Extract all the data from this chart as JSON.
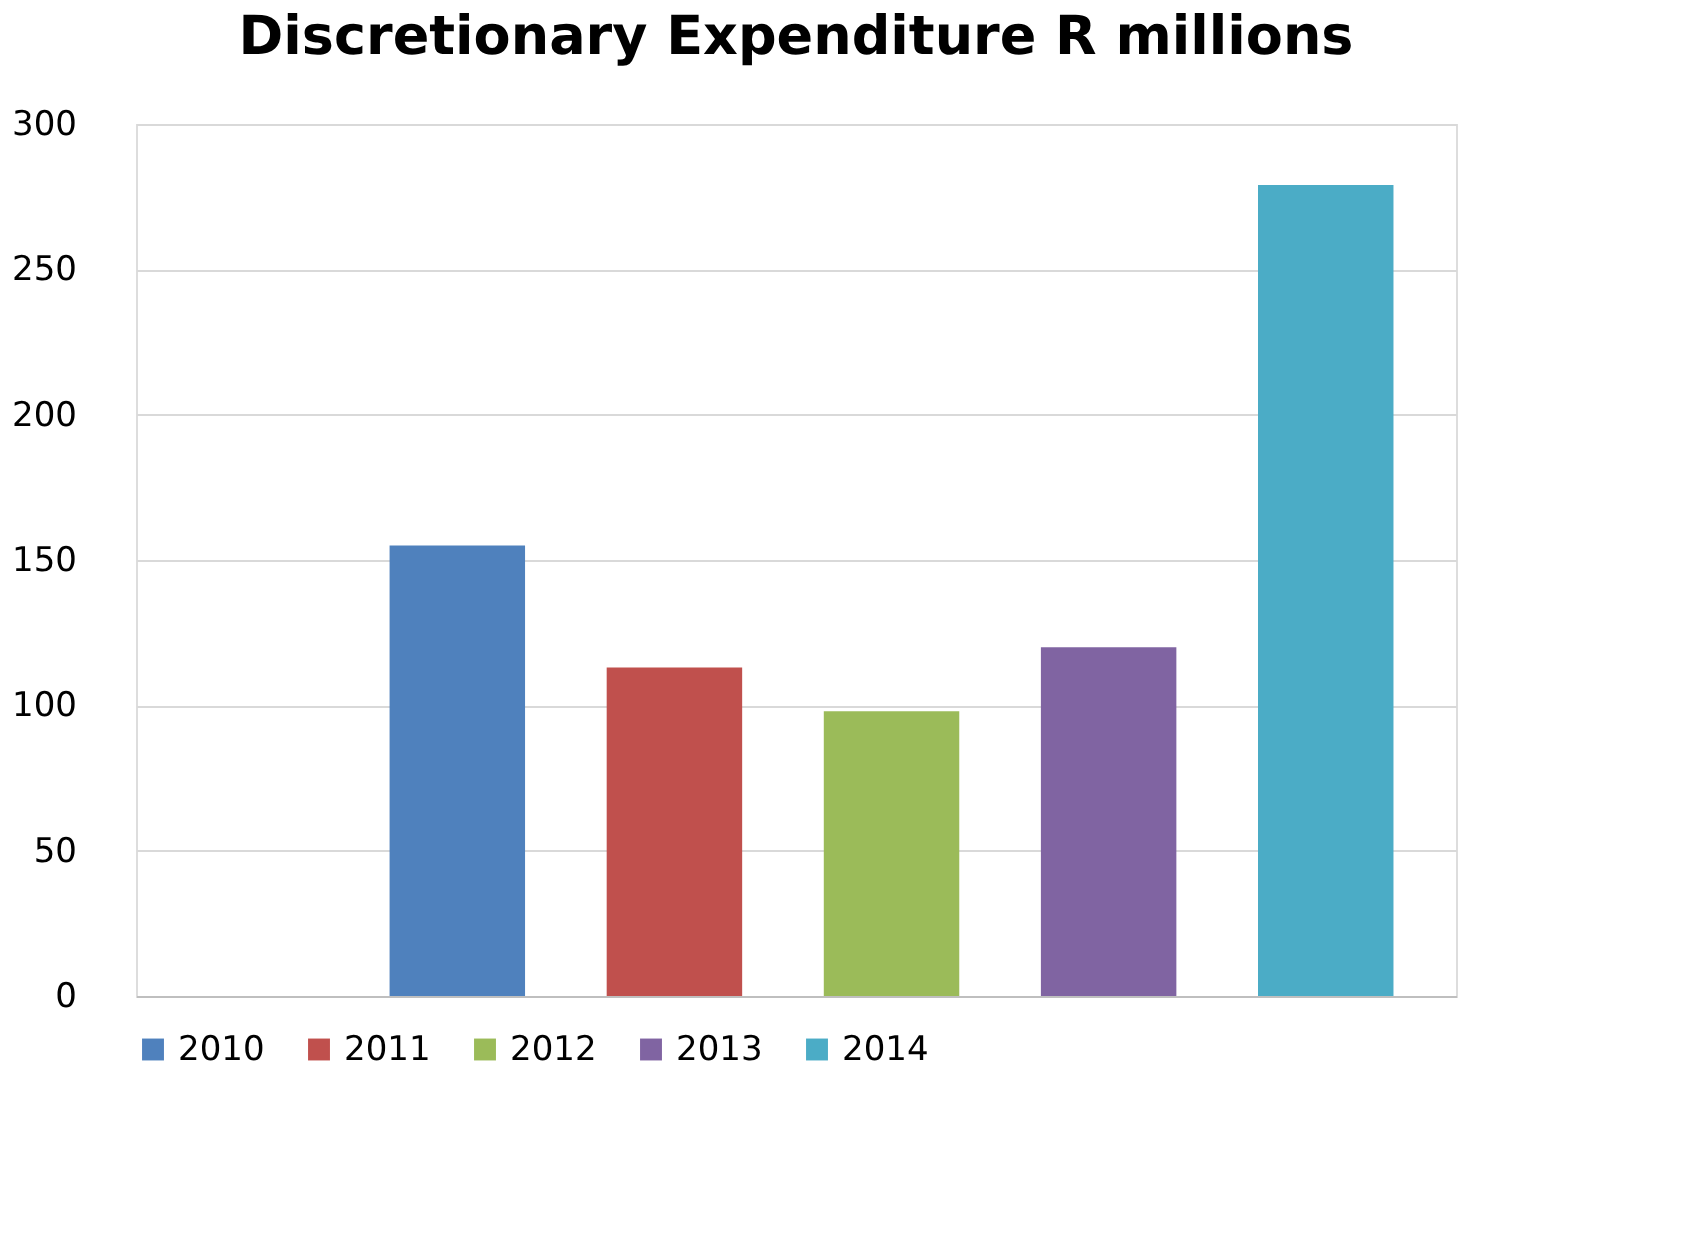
{
  "chart_data": {
    "type": "bar",
    "title": "Discretionary Expenditure  R millions",
    "categories": [
      null
    ],
    "series": [
      {
        "name": "2010",
        "color": "#4f81bd",
        "values": [
          155
        ]
      },
      {
        "name": "2011",
        "color": "#c0504d",
        "values": [
          113
        ]
      },
      {
        "name": "2012",
        "color": "#9bbb59",
        "values": [
          98
        ]
      },
      {
        "name": "2013",
        "color": "#8064a2",
        "values": [
          120
        ]
      },
      {
        "name": "2014",
        "color": "#4bacc6",
        "values": [
          279
        ]
      }
    ],
    "ylim": [
      0,
      300
    ],
    "yticks": [
      0,
      50,
      100,
      150,
      200,
      250,
      300
    ],
    "grid": "y",
    "legend": "bottom",
    "tick_labels": "y"
  }
}
